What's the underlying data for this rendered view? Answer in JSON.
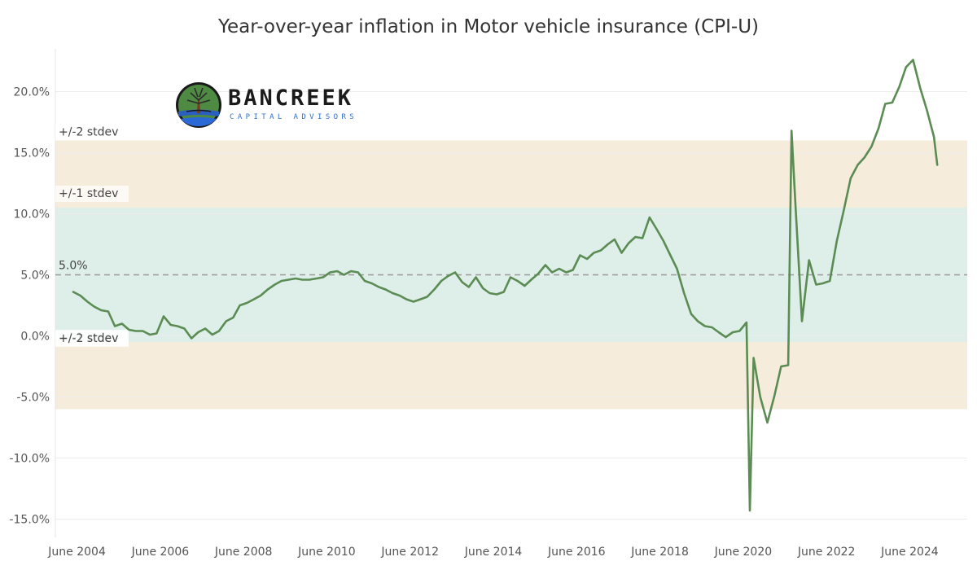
{
  "chart_data": {
    "type": "line",
    "title": "Year-over-year inflation in Motor vehicle insurance (CPI-U)",
    "xlabel": "",
    "ylabel": "",
    "ylim": [
      -16.5,
      23.5
    ],
    "xlim": [
      2003.9,
      2025.8
    ],
    "grid": true,
    "y_ticks": [
      {
        "value": 20,
        "label": "20.0%"
      },
      {
        "value": 15,
        "label": "15.0%"
      },
      {
        "value": 10,
        "label": "10.0%"
      },
      {
        "value": 5,
        "label": "5.0%"
      },
      {
        "value": 0,
        "label": "0.0%"
      },
      {
        "value": -5,
        "label": "-5.0%"
      },
      {
        "value": -10,
        "label": "-10.0%"
      },
      {
        "value": -15,
        "label": "-15.0%"
      }
    ],
    "x_ticks": [
      {
        "value": 2004.42,
        "label": "June 2004"
      },
      {
        "value": 2006.42,
        "label": "June 2006"
      },
      {
        "value": 2008.42,
        "label": "June 2008"
      },
      {
        "value": 2010.42,
        "label": "June 2010"
      },
      {
        "value": 2012.42,
        "label": "June 2012"
      },
      {
        "value": 2014.42,
        "label": "June 2014"
      },
      {
        "value": 2016.42,
        "label": "June 2016"
      },
      {
        "value": 2018.42,
        "label": "June 2018"
      },
      {
        "value": 2020.42,
        "label": "June 2020"
      },
      {
        "value": 2022.42,
        "label": "June 2022"
      },
      {
        "value": 2024.42,
        "label": "June 2024"
      }
    ],
    "reference_line": {
      "value": 5.0,
      "label": "5.0%"
    },
    "bands": [
      {
        "from": -0.5,
        "to": 10.5,
        "color": "#deeee9",
        "label_top": "+/-1 stdev",
        "label_bottom": "+/-1 stdev"
      },
      {
        "from": -6.0,
        "to": -0.5,
        "color": "#f5ecdc",
        "label": "+/-2 stdev"
      },
      {
        "from": 10.5,
        "to": 16.0,
        "color": "#f5ecdc",
        "label": "+/-2 stdev"
      }
    ],
    "series": [
      {
        "line_color": "#5b8c53",
        "points": [
          [
            2004.33,
            3.6
          ],
          [
            2004.5,
            3.3
          ],
          [
            2004.67,
            2.8
          ],
          [
            2004.83,
            2.4
          ],
          [
            2005.0,
            2.1
          ],
          [
            2005.17,
            2.0
          ],
          [
            2005.33,
            0.8
          ],
          [
            2005.5,
            1.0
          ],
          [
            2005.67,
            0.5
          ],
          [
            2005.83,
            0.4
          ],
          [
            2006.0,
            0.4
          ],
          [
            2006.17,
            0.1
          ],
          [
            2006.33,
            0.2
          ],
          [
            2006.5,
            1.6
          ],
          [
            2006.67,
            0.9
          ],
          [
            2006.83,
            0.8
          ],
          [
            2007.0,
            0.6
          ],
          [
            2007.17,
            -0.2
          ],
          [
            2007.33,
            0.3
          ],
          [
            2007.5,
            0.6
          ],
          [
            2007.67,
            0.1
          ],
          [
            2007.83,
            0.4
          ],
          [
            2008.0,
            1.2
          ],
          [
            2008.17,
            1.5
          ],
          [
            2008.33,
            2.5
          ],
          [
            2008.5,
            2.7
          ],
          [
            2008.67,
            3.0
          ],
          [
            2008.83,
            3.3
          ],
          [
            2009.0,
            3.8
          ],
          [
            2009.17,
            4.2
          ],
          [
            2009.33,
            4.5
          ],
          [
            2009.5,
            4.6
          ],
          [
            2009.67,
            4.7
          ],
          [
            2009.83,
            4.6
          ],
          [
            2010.0,
            4.6
          ],
          [
            2010.17,
            4.7
          ],
          [
            2010.33,
            4.8
          ],
          [
            2010.5,
            5.2
          ],
          [
            2010.67,
            5.3
          ],
          [
            2010.83,
            5.0
          ],
          [
            2011.0,
            5.3
          ],
          [
            2011.17,
            5.2
          ],
          [
            2011.33,
            4.5
          ],
          [
            2011.5,
            4.3
          ],
          [
            2011.67,
            4.0
          ],
          [
            2011.83,
            3.8
          ],
          [
            2012.0,
            3.5
          ],
          [
            2012.17,
            3.3
          ],
          [
            2012.33,
            3.0
          ],
          [
            2012.5,
            2.8
          ],
          [
            2012.67,
            3.0
          ],
          [
            2012.83,
            3.2
          ],
          [
            2013.0,
            3.8
          ],
          [
            2013.17,
            4.5
          ],
          [
            2013.33,
            4.9
          ],
          [
            2013.5,
            5.2
          ],
          [
            2013.67,
            4.4
          ],
          [
            2013.83,
            4.0
          ],
          [
            2014.0,
            4.8
          ],
          [
            2014.17,
            3.9
          ],
          [
            2014.33,
            3.5
          ],
          [
            2014.5,
            3.4
          ],
          [
            2014.67,
            3.6
          ],
          [
            2014.83,
            4.8
          ],
          [
            2015.0,
            4.5
          ],
          [
            2015.17,
            4.1
          ],
          [
            2015.33,
            4.6
          ],
          [
            2015.5,
            5.1
          ],
          [
            2015.67,
            5.8
          ],
          [
            2015.83,
            5.2
          ],
          [
            2016.0,
            5.5
          ],
          [
            2016.17,
            5.2
          ],
          [
            2016.33,
            5.4
          ],
          [
            2016.5,
            6.6
          ],
          [
            2016.67,
            6.3
          ],
          [
            2016.83,
            6.8
          ],
          [
            2017.0,
            7.0
          ],
          [
            2017.17,
            7.5
          ],
          [
            2017.33,
            7.9
          ],
          [
            2017.5,
            6.8
          ],
          [
            2017.67,
            7.6
          ],
          [
            2017.83,
            8.1
          ],
          [
            2018.0,
            8.0
          ],
          [
            2018.17,
            9.7
          ],
          [
            2018.33,
            8.8
          ],
          [
            2018.5,
            7.8
          ],
          [
            2018.67,
            6.6
          ],
          [
            2018.83,
            5.5
          ],
          [
            2019.0,
            3.5
          ],
          [
            2019.17,
            1.8
          ],
          [
            2019.33,
            1.2
          ],
          [
            2019.5,
            0.8
          ],
          [
            2019.67,
            0.7
          ],
          [
            2019.83,
            0.3
          ],
          [
            2020.0,
            -0.1
          ],
          [
            2020.17,
            0.3
          ],
          [
            2020.33,
            0.4
          ],
          [
            2020.5,
            1.1
          ],
          [
            2020.58,
            -14.3
          ],
          [
            2020.67,
            -1.8
          ],
          [
            2020.83,
            -5.0
          ],
          [
            2021.0,
            -7.1
          ],
          [
            2021.17,
            -4.9
          ],
          [
            2021.33,
            -2.5
          ],
          [
            2021.5,
            -2.4
          ],
          [
            2021.58,
            16.8
          ],
          [
            2021.67,
            11.0
          ],
          [
            2021.83,
            1.2
          ],
          [
            2022.0,
            6.2
          ],
          [
            2022.17,
            4.2
          ],
          [
            2022.33,
            4.3
          ],
          [
            2022.5,
            4.5
          ],
          [
            2022.67,
            7.8
          ],
          [
            2022.83,
            10.2
          ],
          [
            2023.0,
            12.9
          ],
          [
            2023.17,
            14.0
          ],
          [
            2023.33,
            14.6
          ],
          [
            2023.5,
            15.5
          ],
          [
            2023.67,
            17.0
          ],
          [
            2023.83,
            19.0
          ],
          [
            2024.0,
            19.1
          ],
          [
            2024.17,
            20.4
          ],
          [
            2024.33,
            22.0
          ],
          [
            2024.5,
            22.6
          ],
          [
            2024.67,
            20.3
          ],
          [
            2024.83,
            18.5
          ],
          [
            2025.0,
            16.3
          ],
          [
            2025.08,
            14.0
          ]
        ]
      }
    ]
  },
  "logo": {
    "name": "BANCREEK",
    "subtitle": "CAPITAL ADVISORS"
  }
}
